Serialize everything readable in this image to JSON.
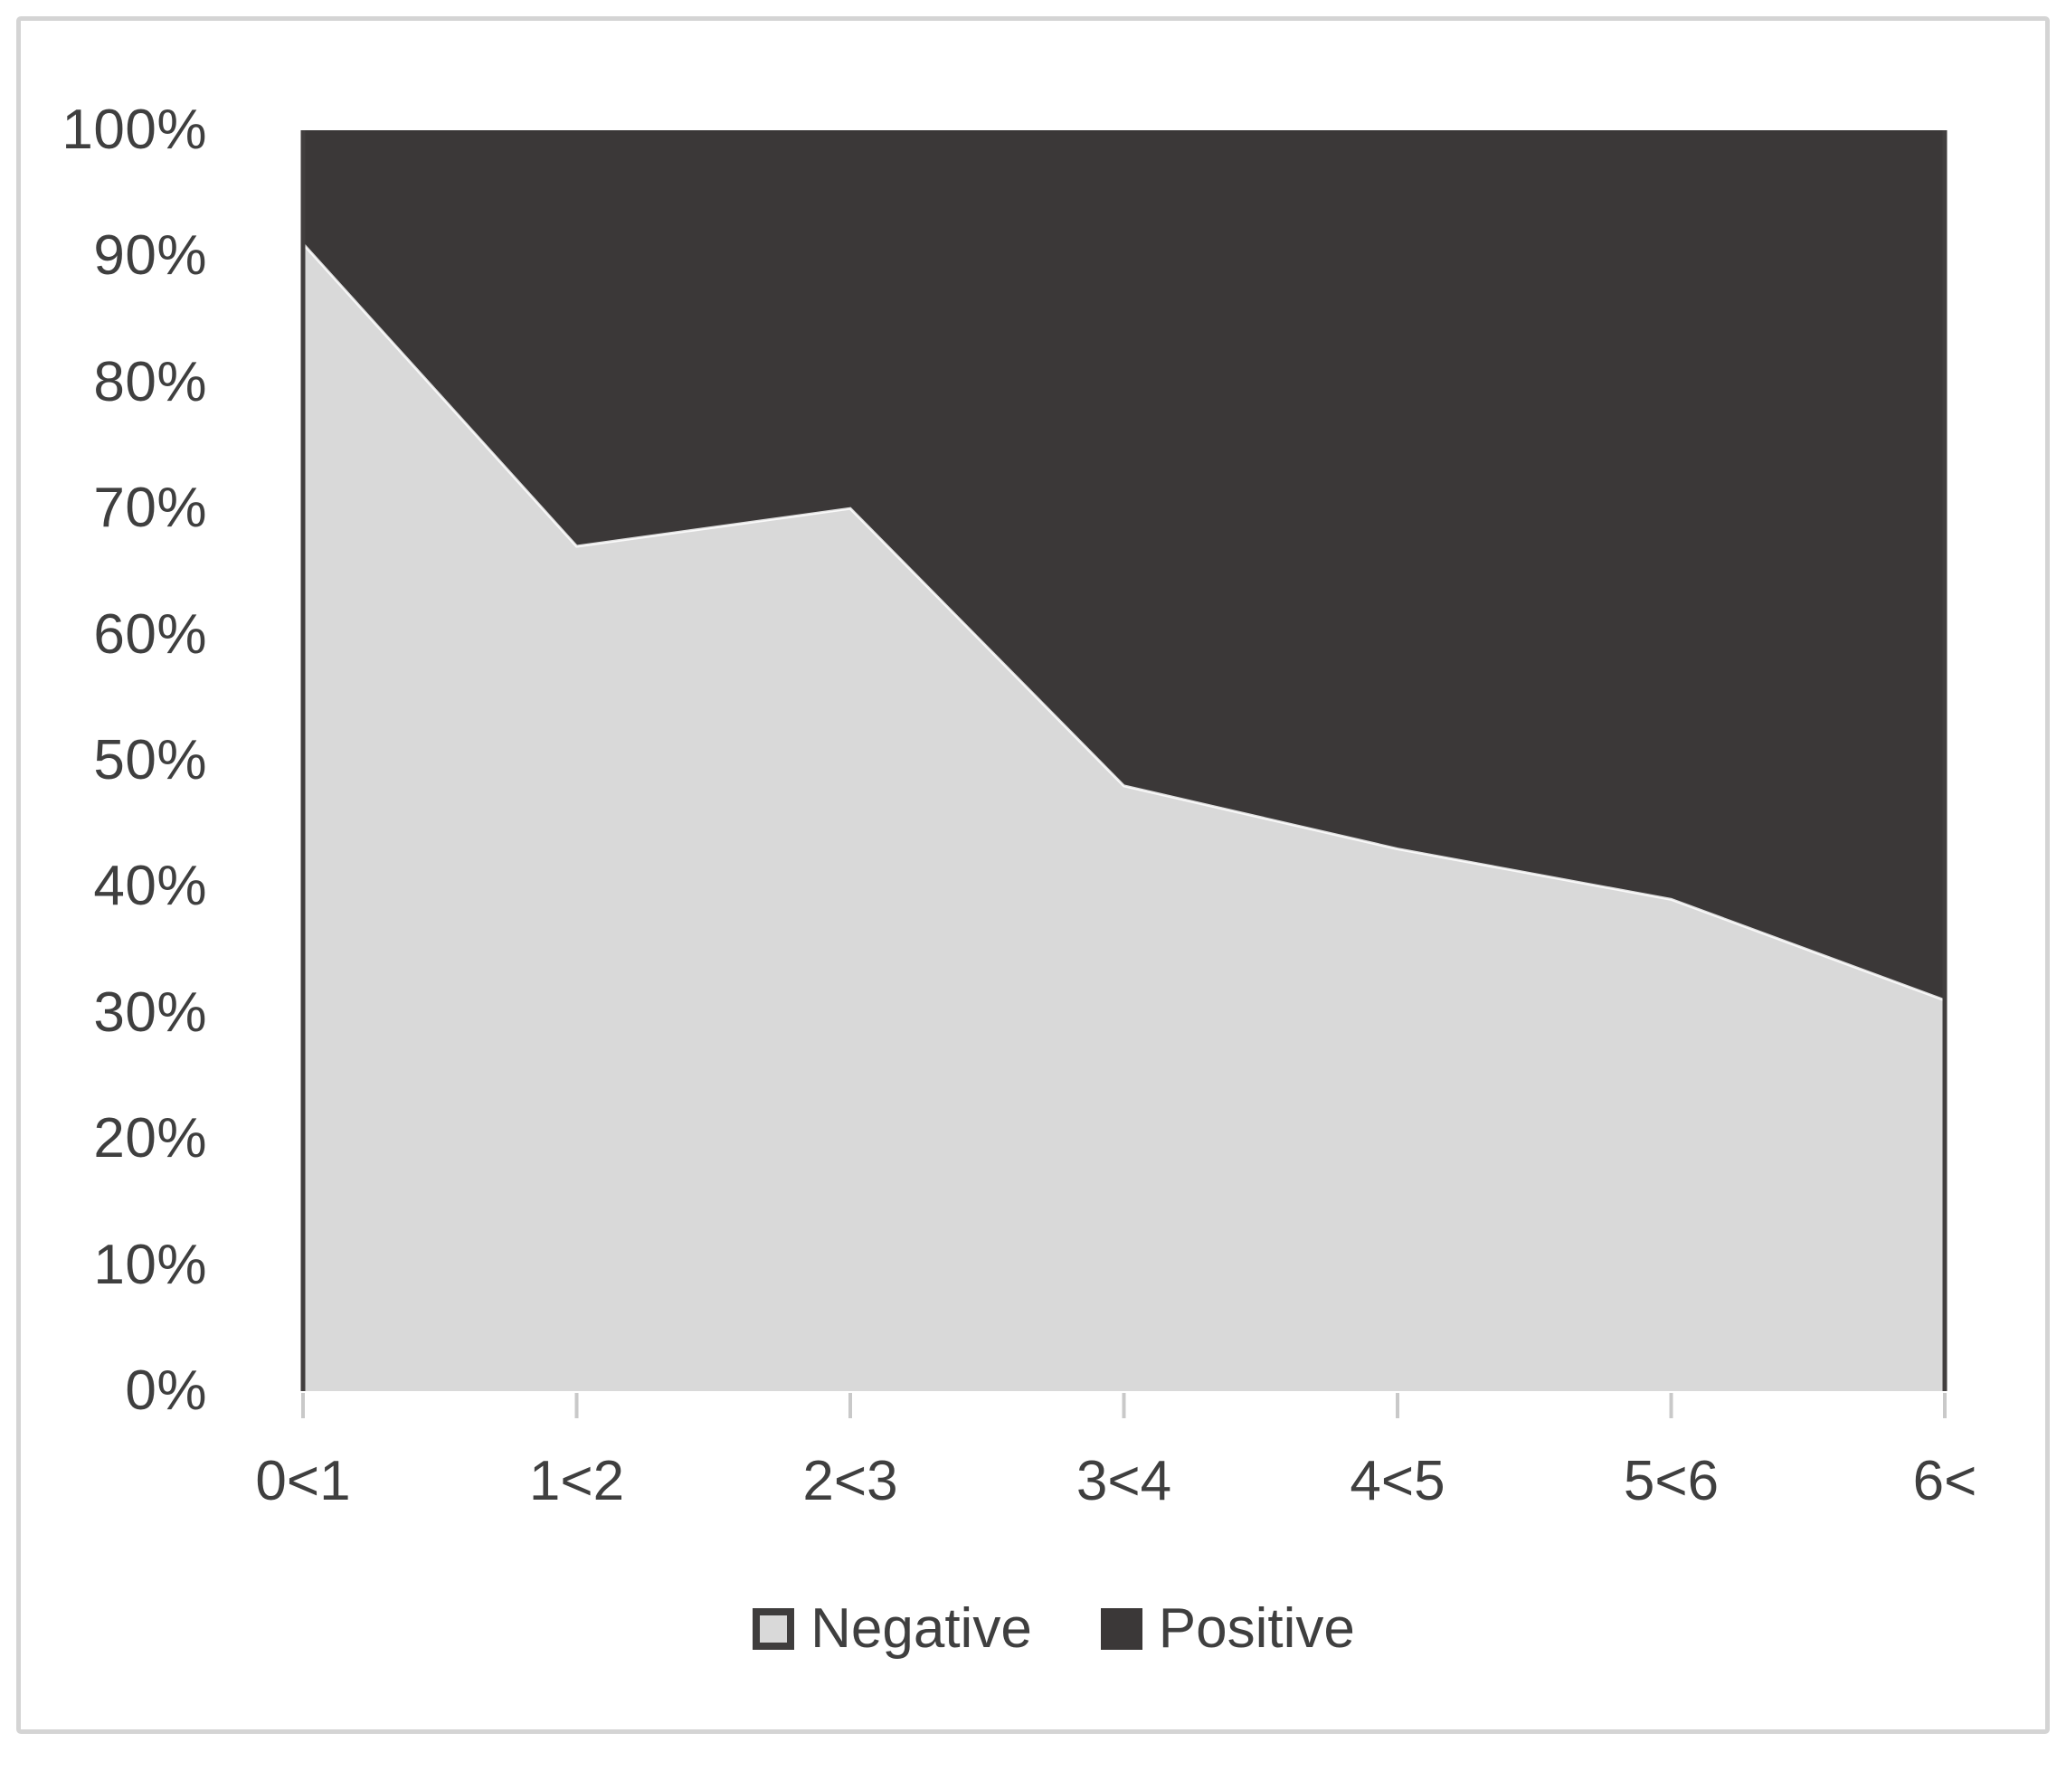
{
  "figure": {
    "border_color": "#d4d4d4",
    "background_color": "#ffffff"
  },
  "chart_data": {
    "type": "area",
    "stacking": "percent",
    "title": "",
    "xlabel": "",
    "ylabel": "",
    "categories": [
      "0<1",
      "1<2",
      "2<3",
      "3<4",
      "4<5",
      "5<6",
      "6<"
    ],
    "series": [
      {
        "name": "Negative",
        "color": "#d9d9d9",
        "values": [
          91,
          67,
          70,
          48,
          43,
          39,
          31
        ]
      },
      {
        "name": "Positive",
        "color": "#3b3838",
        "values": [
          9,
          33,
          30,
          52,
          57,
          61,
          69
        ]
      }
    ],
    "yaxis": {
      "min": 0,
      "max": 100,
      "tick_step": 10,
      "ticks": [
        "0%",
        "10%",
        "20%",
        "30%",
        "40%",
        "50%",
        "60%",
        "70%",
        "80%",
        "90%",
        "100%"
      ],
      "grid": false
    },
    "xaxis": {
      "tick_marks": "at-categories",
      "tick_color": "#c9c9c9"
    },
    "legend_position": "bottom",
    "boundary_highlight_color": "#ffffff",
    "edge_line_color": "#413e3e",
    "text_color": "#3f3f3f"
  },
  "legend": {
    "items": [
      {
        "label": "Negative",
        "swatch_fill": "#d9d9d9",
        "swatch_border": "#3f3d3d"
      },
      {
        "label": "Positive",
        "swatch_fill": "#3b3838",
        "swatch_border": "#3b3838"
      }
    ]
  }
}
